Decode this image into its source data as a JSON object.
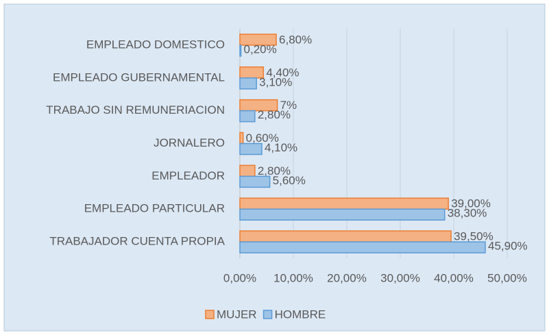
{
  "chart_data": {
    "type": "hbar",
    "categories": [
      "EMPLEADO DOMESTICO",
      "EMPLEADO GUBERNAMENTAL",
      "TRABAJO SIN REMUNERIACION",
      "JORNALERO",
      "EMPLEADOR",
      "EMPLEADO PARTICULAR",
      "TRABAJADOR CUENTA PROPIA"
    ],
    "series": [
      {
        "name": "MUJER",
        "color": "#f4b183",
        "stroke": "#ed7d31",
        "values": [
          6.8,
          4.4,
          7,
          0.6,
          2.8,
          39.0,
          39.5
        ],
        "value_labels": [
          "6,80%",
          "4,40%",
          "7%",
          "0,60%",
          "2,80%",
          "39,00%",
          "39,50%"
        ]
      },
      {
        "name": "HOMBRE",
        "color": "#9dc3e6",
        "stroke": "#5b9bd5",
        "values": [
          0.2,
          3.1,
          2.8,
          4.1,
          5.6,
          38.3,
          45.9
        ],
        "value_labels": [
          "0,20%",
          "3,10%",
          "2,80%",
          "4,10%",
          "5,60%",
          "38,30%",
          "45,90%"
        ]
      }
    ],
    "xlim": [
      0,
      50
    ],
    "xticks": [
      {
        "value": 0,
        "label": "0,00%"
      },
      {
        "value": 10,
        "label": "10,00%"
      },
      {
        "value": 20,
        "label": "20,00%"
      },
      {
        "value": 30,
        "label": "30,00%"
      },
      {
        "value": 40,
        "label": "40,00%"
      },
      {
        "value": 50,
        "label": "50,00%"
      }
    ],
    "grid": true,
    "legend": "bottom"
  }
}
